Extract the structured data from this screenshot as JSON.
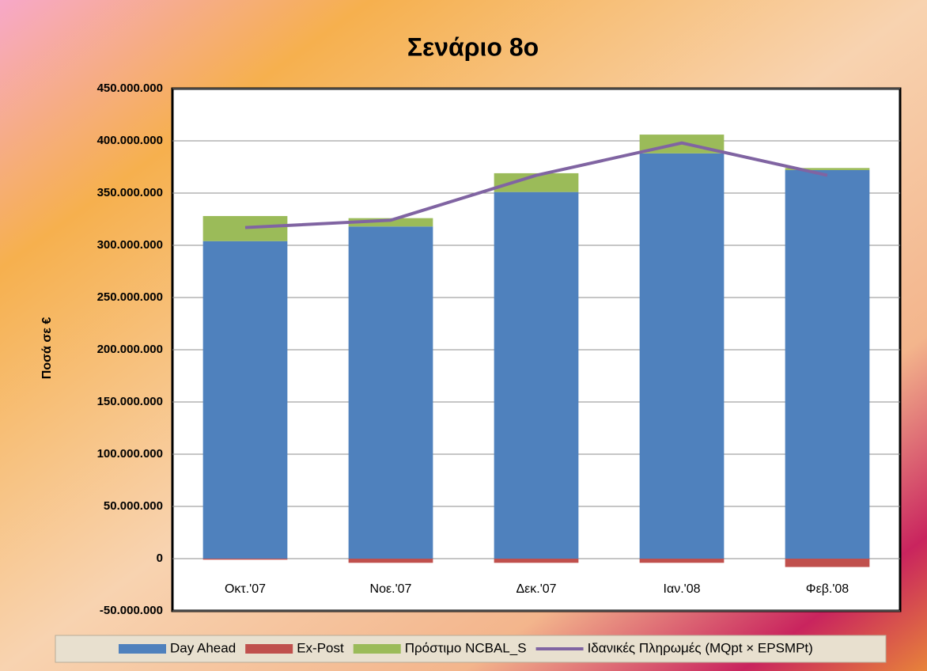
{
  "chart_data": {
    "type": "stacked-bar-line",
    "title": "Σενάριο 8ο",
    "y_label": "Ποσά σε €",
    "categories": [
      "Οκτ.'07",
      "Νοε.'07",
      "Δεκ.'07",
      "Ιαν.'08",
      "Φεβ.'08"
    ],
    "series": [
      {
        "name": "Day Ahead",
        "type": "bar",
        "color": "#4f81bd",
        "values": [
          304000000,
          318000000,
          351000000,
          388000000,
          372000000
        ]
      },
      {
        "name": "Ex-Post",
        "type": "bar",
        "color": "#c0504d",
        "values": [
          -1000000,
          -4000000,
          -4000000,
          -4000000,
          -8000000
        ]
      },
      {
        "name": "Πρόστιμο NCBAL_S",
        "type": "bar",
        "color": "#9bbb59",
        "values": [
          24000000,
          8000000,
          18000000,
          18000000,
          2000000
        ]
      },
      {
        "name": "Ιδανικές Πληρωμές (MQpt × EPSMPt)",
        "type": "line",
        "color": "#8064a2",
        "values": [
          317000000,
          324000000,
          367000000,
          398000000,
          367000000
        ]
      }
    ],
    "ylim": [
      -50000000,
      450000000
    ],
    "yticks": [
      {
        "value": -50000000,
        "label": "-50.000.000"
      },
      0,
      {
        "value": 50000000,
        "label": "50.000.000"
      },
      {
        "value": 100000000,
        "label": "100.000.000"
      },
      {
        "value": 150000000,
        "label": "150.000.000"
      },
      {
        "value": 200000000,
        "label": "200.000.000"
      },
      {
        "value": 250000000,
        "label": "250.000.000"
      },
      {
        "value": 300000000,
        "label": "300.000.000"
      },
      {
        "value": 350000000,
        "label": "350.000.000"
      },
      {
        "value": 400000000,
        "label": "400.000.000"
      },
      {
        "value": 450000000,
        "label": "450.000.000"
      }
    ],
    "grid": true,
    "legend": "bottom"
  }
}
